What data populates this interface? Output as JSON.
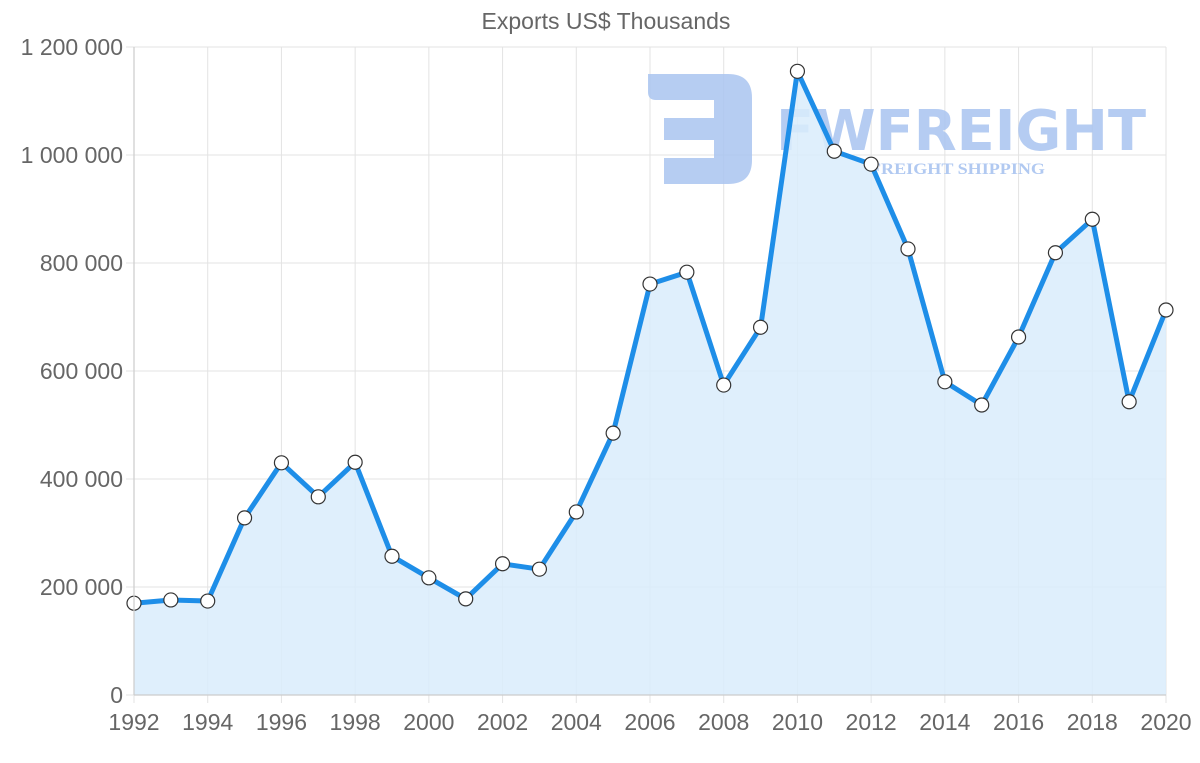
{
  "chart_data": {
    "type": "area",
    "title": "Exports US$ Thousands",
    "xlabel": "",
    "ylabel": "",
    "ylim": [
      0,
      1200000
    ],
    "grid": true,
    "legend": "none",
    "y_ticks": [
      "0",
      "200 000",
      "400 000",
      "600 000",
      "800 000",
      "1 000 000",
      "1 200 000"
    ],
    "x_ticks": [
      "1992",
      "1994",
      "1996",
      "1998",
      "2000",
      "2002",
      "2004",
      "2006",
      "2008",
      "2010",
      "2012",
      "2014",
      "2016",
      "2018",
      "2020"
    ],
    "x": [
      1992,
      1993,
      1994,
      1995,
      1996,
      1997,
      1998,
      1999,
      2000,
      2001,
      2002,
      2003,
      2004,
      2005,
      2006,
      2007,
      2008,
      2009,
      2010,
      2011,
      2012,
      2013,
      2014,
      2015,
      2016,
      2017,
      2018,
      2019,
      2020
    ],
    "series": [
      {
        "name": "Exports US$ Thousands",
        "values": [
          170000,
          176000,
          174000,
          328000,
          430000,
          367000,
          431000,
          257000,
          217000,
          178000,
          243000,
          233000,
          339000,
          485000,
          761000,
          783000,
          574000,
          681000,
          1155000,
          1007000,
          983000,
          826000,
          580000,
          537000,
          663000,
          819000,
          881000,
          543000,
          713000
        ]
      }
    ],
    "colors": {
      "line": "#1e8ee8",
      "fill": "#d9ecfc",
      "point_fill": "#ffffff",
      "point_stroke": "#333333",
      "grid": "#e3e3e3",
      "text": "#666666"
    }
  },
  "watermark": {
    "brand": "FWFREIGHT",
    "tagline": "FREIGHT SHIPPING",
    "color": "#a9c4f0"
  }
}
